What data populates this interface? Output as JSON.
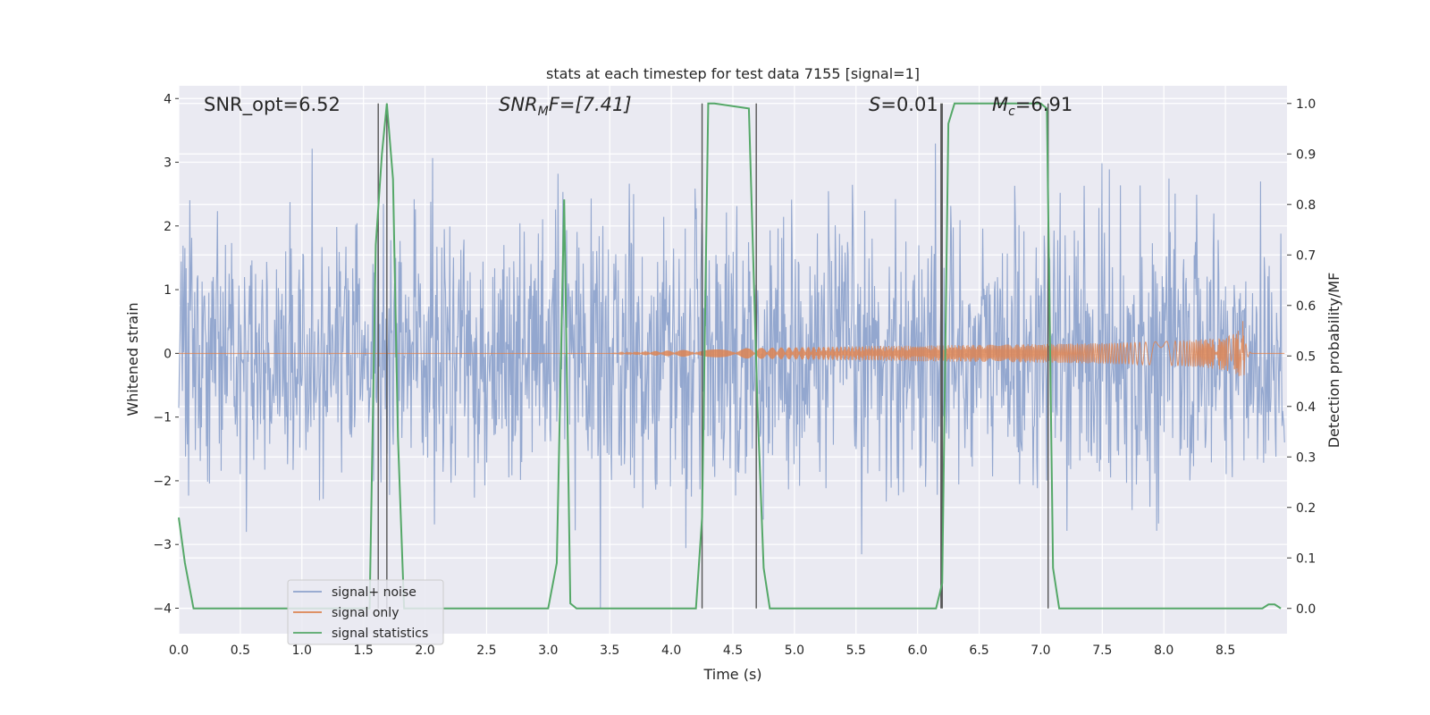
{
  "chart_data": {
    "type": "line",
    "title": "stats at each timestep for test data 7155 [signal=1]",
    "xlabel": "Time (s)",
    "ylabel_left": "Whitened strain",
    "ylabel_right": "Detection probability/MF",
    "xlim": [
      0,
      9.0
    ],
    "ylim_left": [
      -4.4,
      4.2
    ],
    "ylim_right": [
      -0.05,
      1.035
    ],
    "x_ticks": [
      "0.0",
      "0.5",
      "1.0",
      "1.5",
      "2.0",
      "2.5",
      "3.0",
      "3.5",
      "4.0",
      "4.5",
      "5.0",
      "5.5",
      "6.0",
      "6.5",
      "7.0",
      "7.5",
      "8.0",
      "8.5"
    ],
    "x_tick_values": [
      0,
      0.5,
      1.0,
      1.5,
      2.0,
      2.5,
      3.0,
      3.5,
      4.0,
      4.5,
      5.0,
      5.5,
      6.0,
      6.5,
      7.0,
      7.5,
      8.0,
      8.5
    ],
    "left_ticks": [
      "−4",
      "−3",
      "−2",
      "−1",
      "0",
      "1",
      "2",
      "3",
      "4"
    ],
    "left_tick_values": [
      -4,
      -3,
      -2,
      -1,
      0,
      1,
      2,
      3,
      4
    ],
    "right_ticks": [
      "0.0",
      "0.1",
      "0.2",
      "0.3",
      "0.4",
      "0.5",
      "0.6",
      "0.7",
      "0.8",
      "0.9",
      "1.0"
    ],
    "right_tick_values": [
      0,
      0.1,
      0.2,
      0.3,
      0.4,
      0.5,
      0.6,
      0.7,
      0.8,
      0.9,
      1.0
    ],
    "grid": true,
    "legend_placement": "lower-left",
    "annotations": {
      "snr_opt": "SNR_opt=6.52",
      "snr_mf_main": "SNR",
      "snr_mf_sub": "M",
      "snr_mf_rest": "F=[7.41]",
      "s_italic": "S",
      "s_rest": "=0.01",
      "mc_main": "M",
      "mc_sub": "c",
      "mc_rest": "=6.91"
    },
    "series": [
      {
        "name": "signal+ noise",
        "color": "#8ea3cc",
        "kind": "noise",
        "x_range": [
          0,
          8.98
        ],
        "amplitude_envelope": 4.0
      },
      {
        "name": "signal only",
        "color": "#dd8452",
        "kind": "chirp",
        "x_range": [
          0,
          8.98
        ],
        "merger_time": 8.65,
        "peak_amplitude": 0.68
      },
      {
        "name": "signal statistics",
        "color": "#55a868",
        "x": [
          0,
          0.05,
          0.12,
          1.55,
          1.6,
          1.65,
          1.69,
          1.74,
          1.78,
          1.83,
          3.0,
          3.07,
          3.13,
          3.18,
          3.23,
          3.28,
          4.2,
          4.25,
          4.3,
          4.35,
          4.63,
          4.7,
          4.75,
          4.8,
          4.85,
          6.15,
          6.2,
          6.25,
          6.3,
          6.35,
          7.0,
          7.05,
          7.1,
          7.15,
          7.2,
          8.75,
          8.8,
          8.85,
          8.9,
          8.95
        ],
        "y": [
          0.18,
          0.09,
          0.0,
          0.0,
          0.72,
          0.9,
          1.0,
          0.85,
          0.34,
          0.0,
          0.0,
          0.09,
          0.81,
          0.01,
          0.0,
          0.0,
          0.0,
          0.18,
          1.0,
          1.0,
          0.99,
          0.4,
          0.08,
          0.0,
          0.0,
          0.0,
          0.05,
          0.96,
          1.0,
          1.0,
          1.0,
          0.99,
          0.08,
          0.0,
          0.0,
          0.0,
          0.0,
          0.008,
          0.008,
          0.0
        ]
      }
    ],
    "vertical_markers": {
      "color": "#555555",
      "x": [
        1.62,
        1.69,
        4.25,
        4.69,
        6.19,
        6.2,
        7.06
      ],
      "y_top": 1.0,
      "y_bottom": 0.0
    }
  }
}
